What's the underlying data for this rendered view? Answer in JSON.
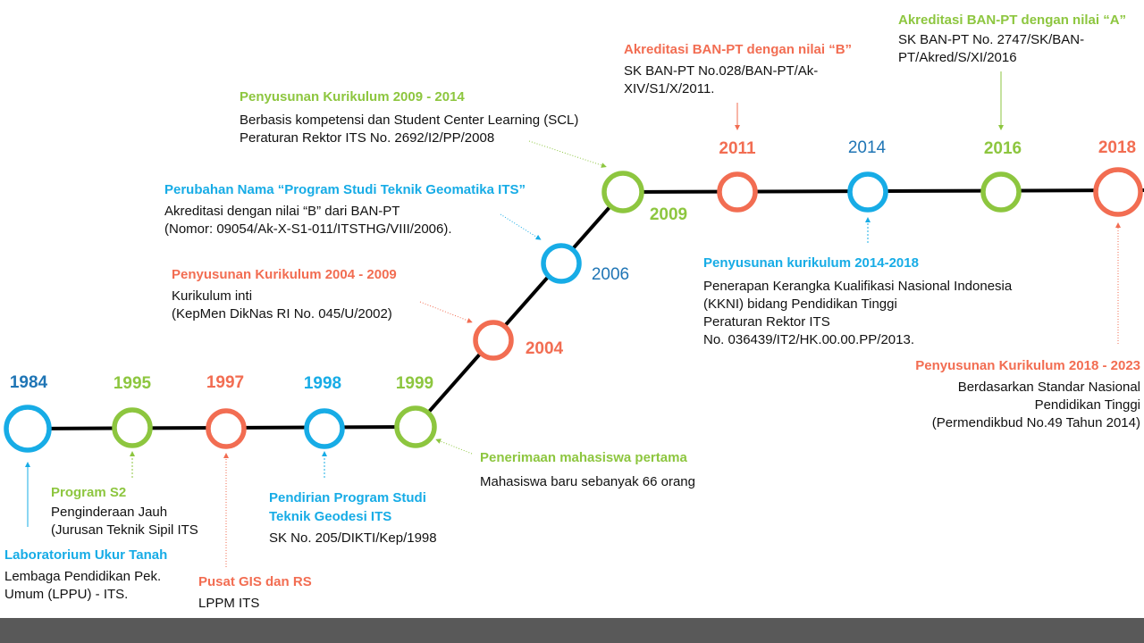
{
  "colors": {
    "blue": "#17ace6",
    "green": "#8dc63f",
    "orange": "#f26d52",
    "dark_blue": "#1f75b5",
    "line": "#000000",
    "footer": "#595959"
  },
  "years": [
    {
      "label": "1984",
      "color": "dark_blue"
    },
    {
      "label": "1995",
      "color": "green"
    },
    {
      "label": "1997",
      "color": "orange"
    },
    {
      "label": "1998",
      "color": "blue"
    },
    {
      "label": "1999",
      "color": "green"
    },
    {
      "label": "2004",
      "color": "orange"
    },
    {
      "label": "2006",
      "color": "dark_blue"
    },
    {
      "label": "2009",
      "color": "green"
    },
    {
      "label": "2011",
      "color": "orange"
    },
    {
      "label": "2014",
      "color": "dark_blue"
    },
    {
      "label": "2016",
      "color": "green"
    },
    {
      "label": "2018",
      "color": "orange"
    }
  ],
  "events": [
    {
      "title": "Laboratorium Ukur Tanah",
      "lines": [
        "Lembaga Pendidikan Pek.",
        "Umum (LPPU) - ITS."
      ]
    },
    {
      "title": "Program S2",
      "lines": [
        "Penginderaan Jauh",
        "(Jurusan Teknik Sipil ITS"
      ]
    },
    {
      "title": "Pusat GIS dan RS",
      "lines": [
        "LPPM ITS"
      ]
    },
    {
      "title": "Pendirian Program Studi\nTeknik Geodesi ITS",
      "lines": [
        "SK No. 205/DIKTI/Kep/1998"
      ]
    },
    {
      "title": "Penerimaan mahasiswa pertama",
      "lines": [
        "Mahasiswa baru sebanyak 66 orang"
      ]
    },
    {
      "title": "Penyusunan Kurikulum 2004 - 2009",
      "lines": [
        "Kurikulum inti",
        "(KepMen DikNas RI No. 045/U/2002)"
      ]
    },
    {
      "title": "Perubahan Nama “Program Studi Teknik Geomatika ITS”",
      "lines": [
        "Akreditasi dengan nilai “B” dari BAN-PT",
        "(Nomor: 09054/Ak-X-S1-011/ITSTHG/VIII/2006)."
      ]
    },
    {
      "title": "Penyusunan Kurikulum 2009 - 2014",
      "lines": [
        "Berbasis kompetensi dan Student Center Learning (SCL)",
        "Peraturan Rektor ITS No. 2692/I2/PP/2008"
      ]
    },
    {
      "title": "Akreditasi BAN-PT dengan nilai “B”",
      "lines": [
        "SK BAN-PT No.028/BAN-PT/Ak-",
        "XIV/S1/X/2011."
      ]
    },
    {
      "title": "Penyusunan kurikulum 2014-2018",
      "lines": [
        "Penerapan Kerangka Kualifikasi Nasional Indonesia",
        "(KKNI) bidang Pendidikan Tinggi",
        "Peraturan Rektor ITS",
        "No. 036439/IT2/HK.00.00.PP/2013."
      ]
    },
    {
      "title": "Akreditasi BAN-PT dengan nilai “A”",
      "lines": [
        "SK BAN-PT No. 2747/SK/BAN-",
        "PT/Akred/S/XI/2016"
      ]
    },
    {
      "title": "Penyusunan Kurikulum 2018 - 2023",
      "lines": [
        "Berdasarkan Standar Nasional",
        "Pendidikan Tinggi",
        "(Permendikbud No.49 Tahun 2014)"
      ]
    }
  ]
}
